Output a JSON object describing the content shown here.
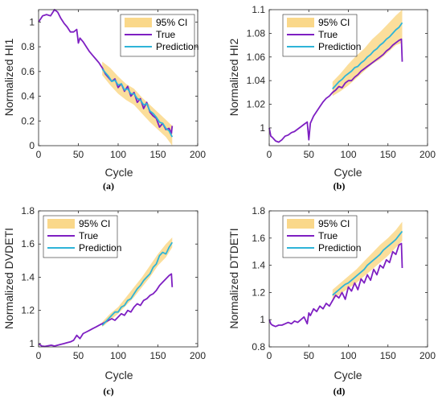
{
  "chart_data": [
    {
      "type": "line",
      "panel_label": "(a)",
      "xlabel": "Cycle",
      "ylabel": "Normalized HI1",
      "xlim": [
        0,
        200
      ],
      "ylim": [
        0,
        1.1
      ],
      "xticks": [
        0,
        50,
        100,
        150,
        200
      ],
      "yticks": [
        0,
        0.2,
        0.4,
        0.6,
        0.8,
        1
      ],
      "ytick_labels": [
        "0",
        "0.2",
        "0.4",
        "0.6",
        "0.8",
        "1"
      ],
      "legend": {
        "placement": "top-right",
        "entries": [
          "95% CI",
          "True",
          "Prediction"
        ]
      },
      "series": [
        {
          "name": "95% CI",
          "kind": "band",
          "color": "#fad88a",
          "x": [
            80,
            90,
            100,
            110,
            120,
            130,
            140,
            150,
            160,
            168
          ],
          "lower": [
            0.57,
            0.49,
            0.42,
            0.37,
            0.33,
            0.26,
            0.19,
            0.13,
            0.07,
            0.0
          ],
          "upper": [
            0.68,
            0.63,
            0.56,
            0.5,
            0.46,
            0.39,
            0.33,
            0.27,
            0.21,
            0.16
          ]
        },
        {
          "name": "True",
          "kind": "line",
          "color": "#7e1fc2",
          "x": [
            0,
            5,
            10,
            15,
            20,
            24,
            28,
            32,
            36,
            40,
            44,
            48,
            50,
            52,
            56,
            60,
            64,
            68,
            72,
            76,
            80,
            84,
            88,
            92,
            96,
            100,
            104,
            108,
            112,
            116,
            120,
            124,
            128,
            132,
            136,
            140,
            144,
            148,
            152,
            156,
            160,
            164,
            167,
            168
          ],
          "y": [
            1.0,
            1.05,
            1.06,
            1.05,
            1.1,
            1.08,
            1.03,
            0.99,
            0.96,
            0.92,
            0.92,
            0.94,
            0.83,
            0.87,
            0.84,
            0.8,
            0.76,
            0.73,
            0.7,
            0.67,
            0.63,
            0.58,
            0.55,
            0.52,
            0.54,
            0.47,
            0.5,
            0.44,
            0.48,
            0.4,
            0.43,
            0.35,
            0.38,
            0.3,
            0.35,
            0.27,
            0.24,
            0.22,
            0.15,
            0.18,
            0.13,
            0.14,
            0.1,
            0.16
          ]
        },
        {
          "name": "Prediction",
          "kind": "line",
          "color": "#2eb4d8",
          "x": [
            80,
            84,
            88,
            92,
            96,
            100,
            104,
            108,
            112,
            116,
            120,
            124,
            128,
            132,
            136,
            140,
            144,
            148,
            152,
            156,
            160,
            164,
            168
          ],
          "y": [
            0.62,
            0.59,
            0.56,
            0.52,
            0.53,
            0.49,
            0.5,
            0.45,
            0.46,
            0.42,
            0.42,
            0.38,
            0.37,
            0.33,
            0.34,
            0.28,
            0.26,
            0.23,
            0.19,
            0.18,
            0.14,
            0.12,
            0.07
          ]
        }
      ]
    },
    {
      "type": "line",
      "panel_label": "(b)",
      "xlabel": "Cycle",
      "ylabel": "Normalized HI2",
      "xlim": [
        0,
        200
      ],
      "ylim": [
        0.985,
        1.1
      ],
      "xticks": [
        0,
        50,
        100,
        150,
        200
      ],
      "yticks": [
        1,
        1.02,
        1.04,
        1.06,
        1.08,
        1.1
      ],
      "ytick_labels": [
        "1",
        "1.02",
        "1.04",
        "1.06",
        "1.08",
        "1.1"
      ],
      "legend": {
        "placement": "top-left",
        "entries": [
          "95% CI",
          "True",
          "Prediction"
        ]
      },
      "series": [
        {
          "name": "95% CI",
          "kind": "band",
          "color": "#fad88a",
          "x": [
            80,
            90,
            100,
            110,
            120,
            130,
            140,
            150,
            160,
            168
          ],
          "lower": [
            1.027,
            1.031,
            1.036,
            1.042,
            1.048,
            1.054,
            1.058,
            1.064,
            1.07,
            1.072
          ],
          "upper": [
            1.039,
            1.046,
            1.054,
            1.061,
            1.067,
            1.075,
            1.081,
            1.088,
            1.095,
            1.1
          ]
        },
        {
          "name": "True",
          "kind": "line",
          "color": "#7e1fc2",
          "x": [
            0,
            2,
            4,
            8,
            12,
            16,
            20,
            24,
            28,
            32,
            36,
            40,
            44,
            48,
            50,
            52,
            56,
            60,
            64,
            68,
            72,
            76,
            80,
            84,
            88,
            92,
            96,
            100,
            104,
            108,
            112,
            116,
            120,
            124,
            128,
            132,
            136,
            140,
            144,
            148,
            152,
            156,
            160,
            164,
            167,
            168
          ],
          "y": [
            1.0,
            0.993,
            0.992,
            0.989,
            0.988,
            0.99,
            0.993,
            0.994,
            0.996,
            0.997,
            0.999,
            1.001,
            1.003,
            1.005,
            0.99,
            1.004,
            1.01,
            1.014,
            1.018,
            1.022,
            1.025,
            1.027,
            1.03,
            1.032,
            1.035,
            1.034,
            1.038,
            1.04,
            1.04,
            1.043,
            1.045,
            1.048,
            1.05,
            1.052,
            1.054,
            1.056,
            1.058,
            1.06,
            1.062,
            1.065,
            1.067,
            1.07,
            1.072,
            1.074,
            1.075,
            1.056
          ]
        },
        {
          "name": "Prediction",
          "kind": "line",
          "color": "#2eb4d8",
          "x": [
            80,
            84,
            88,
            92,
            96,
            100,
            104,
            108,
            112,
            116,
            120,
            124,
            128,
            132,
            136,
            140,
            144,
            148,
            152,
            156,
            160,
            164,
            168
          ],
          "y": [
            1.033,
            1.036,
            1.039,
            1.041,
            1.044,
            1.046,
            1.048,
            1.051,
            1.052,
            1.055,
            1.057,
            1.06,
            1.062,
            1.065,
            1.067,
            1.07,
            1.072,
            1.075,
            1.077,
            1.08,
            1.083,
            1.085,
            1.089
          ]
        }
      ]
    },
    {
      "type": "line",
      "panel_label": "(c)",
      "xlabel": "Cycle",
      "ylabel": "Normalized DVDETI",
      "xlim": [
        0,
        200
      ],
      "ylim": [
        0.98,
        1.8
      ],
      "xticks": [
        0,
        50,
        100,
        150,
        200
      ],
      "yticks": [
        1,
        1.2,
        1.4,
        1.6,
        1.8
      ],
      "ytick_labels": [
        "1",
        "1.2",
        "1.4",
        "1.6",
        "1.8"
      ],
      "legend": {
        "placement": "top-left",
        "entries": [
          "95% CI",
          "True",
          "Prediction"
        ]
      },
      "series": [
        {
          "name": "95% CI",
          "kind": "band",
          "color": "#fad88a",
          "x": [
            80,
            90,
            100,
            110,
            120,
            130,
            140,
            150,
            160,
            168
          ],
          "lower": [
            1.1,
            1.14,
            1.18,
            1.23,
            1.28,
            1.34,
            1.4,
            1.47,
            1.52,
            1.58
          ],
          "upper": [
            1.13,
            1.18,
            1.22,
            1.28,
            1.34,
            1.4,
            1.47,
            1.54,
            1.6,
            1.64
          ]
        },
        {
          "name": "True",
          "kind": "line",
          "color": "#7e1fc2",
          "x": [
            0,
            4,
            8,
            12,
            16,
            20,
            24,
            28,
            32,
            36,
            40,
            44,
            48,
            52,
            56,
            60,
            64,
            68,
            72,
            76,
            80,
            84,
            88,
            92,
            96,
            100,
            104,
            108,
            112,
            116,
            120,
            124,
            128,
            132,
            136,
            140,
            144,
            148,
            152,
            156,
            160,
            164,
            167,
            168
          ],
          "y": [
            1.0,
            0.985,
            0.983,
            0.987,
            0.99,
            0.985,
            0.99,
            0.995,
            1.0,
            1.005,
            1.01,
            1.02,
            1.05,
            1.03,
            1.06,
            1.07,
            1.08,
            1.09,
            1.1,
            1.11,
            1.12,
            1.13,
            1.14,
            1.15,
            1.14,
            1.16,
            1.18,
            1.17,
            1.2,
            1.19,
            1.22,
            1.24,
            1.23,
            1.26,
            1.27,
            1.29,
            1.3,
            1.32,
            1.35,
            1.37,
            1.39,
            1.41,
            1.42,
            1.34
          ]
        },
        {
          "name": "Prediction",
          "kind": "line",
          "color": "#2eb4d8",
          "x": [
            80,
            84,
            88,
            92,
            96,
            100,
            104,
            108,
            112,
            116,
            120,
            124,
            128,
            132,
            136,
            140,
            144,
            148,
            152,
            156,
            160,
            164,
            168
          ],
          "y": [
            1.11,
            1.13,
            1.15,
            1.17,
            1.19,
            1.19,
            1.22,
            1.23,
            1.26,
            1.27,
            1.3,
            1.33,
            1.35,
            1.38,
            1.4,
            1.42,
            1.46,
            1.48,
            1.53,
            1.55,
            1.54,
            1.58,
            1.61
          ]
        }
      ]
    },
    {
      "type": "line",
      "panel_label": "(d)",
      "xlabel": "Cycle",
      "ylabel": "Normalized DTDETI",
      "xlim": [
        0,
        200
      ],
      "ylim": [
        0.8,
        1.8
      ],
      "xticks": [
        0,
        50,
        100,
        150,
        200
      ],
      "yticks": [
        0.8,
        1,
        1.2,
        1.4,
        1.6,
        1.8
      ],
      "ytick_labels": [
        "0.8",
        "1",
        "1.2",
        "1.4",
        "1.6",
        "1.8"
      ],
      "legend": {
        "placement": "top-left",
        "entries": [
          "95% CI",
          "True",
          "Prediction"
        ]
      },
      "series": [
        {
          "name": "95% CI",
          "kind": "band",
          "color": "#fad88a",
          "x": [
            80,
            90,
            100,
            110,
            120,
            130,
            140,
            150,
            160,
            168
          ],
          "lower": [
            1.15,
            1.19,
            1.23,
            1.27,
            1.32,
            1.37,
            1.42,
            1.47,
            1.53,
            1.58
          ],
          "upper": [
            1.22,
            1.27,
            1.32,
            1.37,
            1.43,
            1.49,
            1.55,
            1.6,
            1.66,
            1.72
          ]
        },
        {
          "name": "True",
          "kind": "line",
          "color": "#7e1fc2",
          "x": [
            0,
            2,
            4,
            8,
            12,
            16,
            20,
            24,
            28,
            32,
            36,
            40,
            44,
            48,
            50,
            52,
            56,
            60,
            64,
            68,
            72,
            76,
            80,
            84,
            88,
            92,
            96,
            100,
            104,
            108,
            112,
            116,
            120,
            124,
            128,
            132,
            136,
            140,
            144,
            148,
            152,
            156,
            160,
            164,
            167,
            168
          ],
          "y": [
            1.0,
            0.97,
            0.96,
            0.95,
            0.96,
            0.96,
            0.97,
            0.98,
            0.97,
            0.99,
            0.98,
            1.0,
            1.02,
            0.97,
            1.05,
            1.03,
            1.08,
            1.06,
            1.1,
            1.08,
            1.12,
            1.1,
            1.14,
            1.18,
            1.16,
            1.2,
            1.15,
            1.24,
            1.21,
            1.27,
            1.22,
            1.3,
            1.27,
            1.33,
            1.29,
            1.37,
            1.33,
            1.4,
            1.38,
            1.44,
            1.42,
            1.5,
            1.48,
            1.55,
            1.56,
            1.38
          ]
        },
        {
          "name": "Prediction",
          "kind": "line",
          "color": "#2eb4d8",
          "x": [
            80,
            84,
            88,
            92,
            96,
            100,
            104,
            108,
            112,
            116,
            120,
            124,
            128,
            132,
            136,
            140,
            144,
            148,
            152,
            156,
            160,
            164,
            168
          ],
          "y": [
            1.18,
            1.2,
            1.22,
            1.24,
            1.26,
            1.27,
            1.29,
            1.31,
            1.33,
            1.35,
            1.37,
            1.4,
            1.42,
            1.44,
            1.46,
            1.48,
            1.51,
            1.53,
            1.55,
            1.57,
            1.59,
            1.62,
            1.65
          ]
        }
      ]
    }
  ]
}
